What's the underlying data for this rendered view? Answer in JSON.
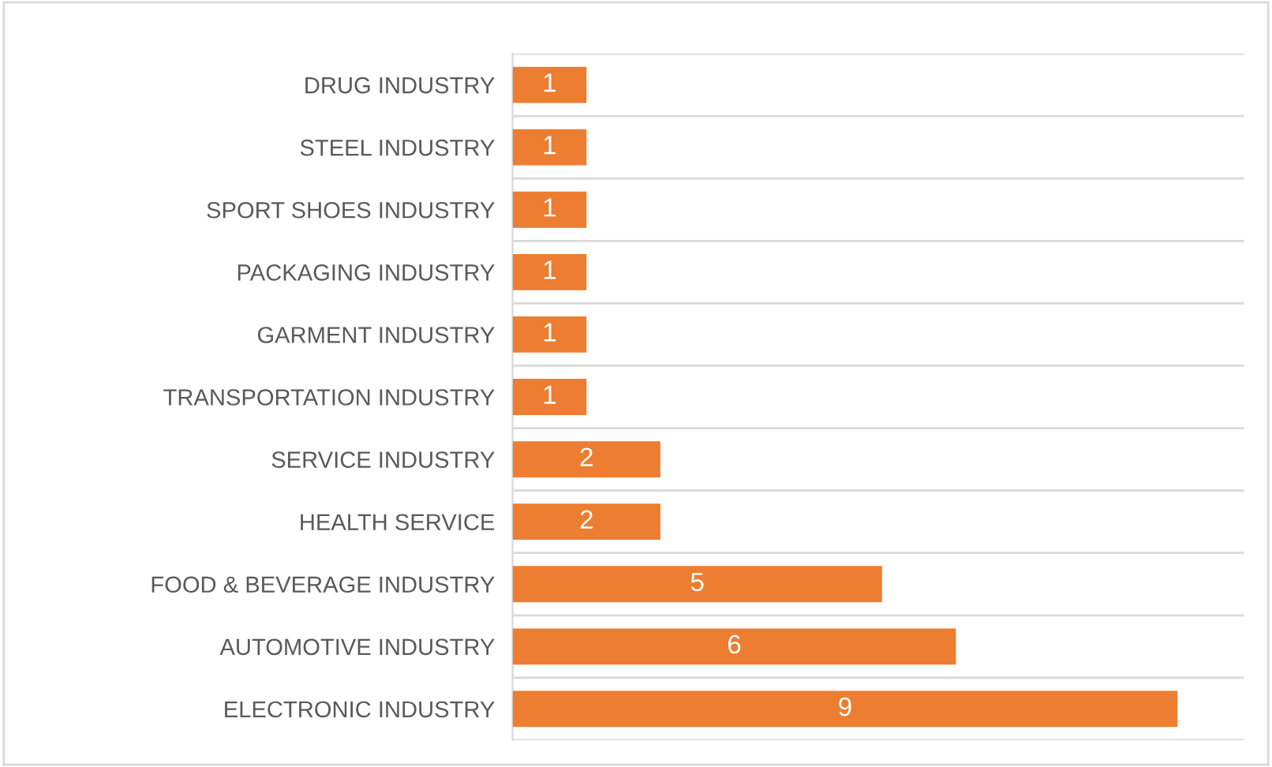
{
  "chart_data": {
    "type": "bar",
    "orientation": "horizontal",
    "categories": [
      "DRUG INDUSTRY",
      "STEEL INDUSTRY",
      "SPORT SHOES INDUSTRY",
      "PACKAGING INDUSTRY",
      "GARMENT INDUSTRY",
      "TRANSPORTATION INDUSTRY",
      "SERVICE INDUSTRY",
      "HEALTH SERVICE",
      "FOOD & BEVERAGE INDUSTRY",
      "AUTOMOTIVE INDUSTRY",
      "ELECTRONIC INDUSTRY"
    ],
    "values": [
      1,
      1,
      1,
      1,
      1,
      1,
      2,
      2,
      5,
      6,
      9
    ],
    "color": "#ed7d31",
    "data_labels": true,
    "grid": "y",
    "legend": false
  }
}
